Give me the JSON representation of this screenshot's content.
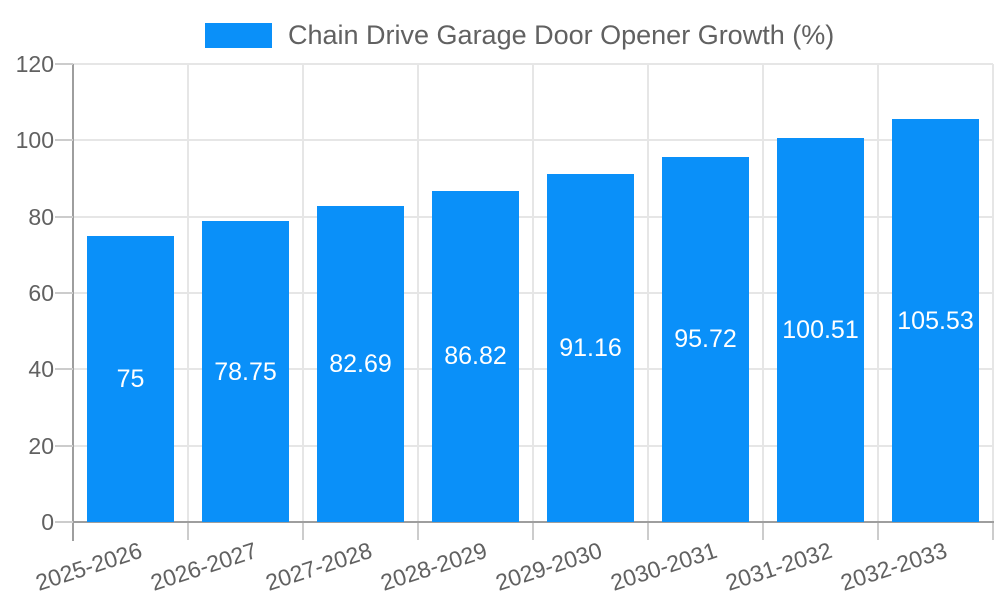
{
  "page": {
    "background": "#ffffff"
  },
  "legend": {
    "label": "Chain Drive Garage Door Opener Growth (%)"
  },
  "chart_data": {
    "type": "bar",
    "title": "Chain Drive Garage Door Opener Growth (%)",
    "legend_position": "top",
    "categories": [
      "2025-2026",
      "2026-2027",
      "2027-2028",
      "2028-2029",
      "2029-2030",
      "2030-2031",
      "2031-2032",
      "2032-2033"
    ],
    "series": [
      {
        "name": "Chain Drive Garage Door Opener Growth (%)",
        "values": [
          75,
          78.75,
          82.69,
          86.82,
          91.16,
          95.72,
          100.51,
          105.53
        ]
      }
    ],
    "bar_value_labels": [
      "75",
      "78.75",
      "82.69",
      "86.82",
      "91.16",
      "95.72",
      "100.51",
      "105.53"
    ],
    "xlabel": "",
    "ylabel": "",
    "ylim": [
      0,
      120
    ],
    "yticks": [
      "0",
      "20",
      "40",
      "60",
      "80",
      "100",
      "120"
    ],
    "grid": true,
    "colors": {
      "bar": "#0a90f9",
      "gridline": "#e6e6e6",
      "axis_line": "#9e9e9e",
      "tick_mark": "#cccccc",
      "axis_text": "#616161",
      "bar_label_text": "#ffffff"
    }
  }
}
